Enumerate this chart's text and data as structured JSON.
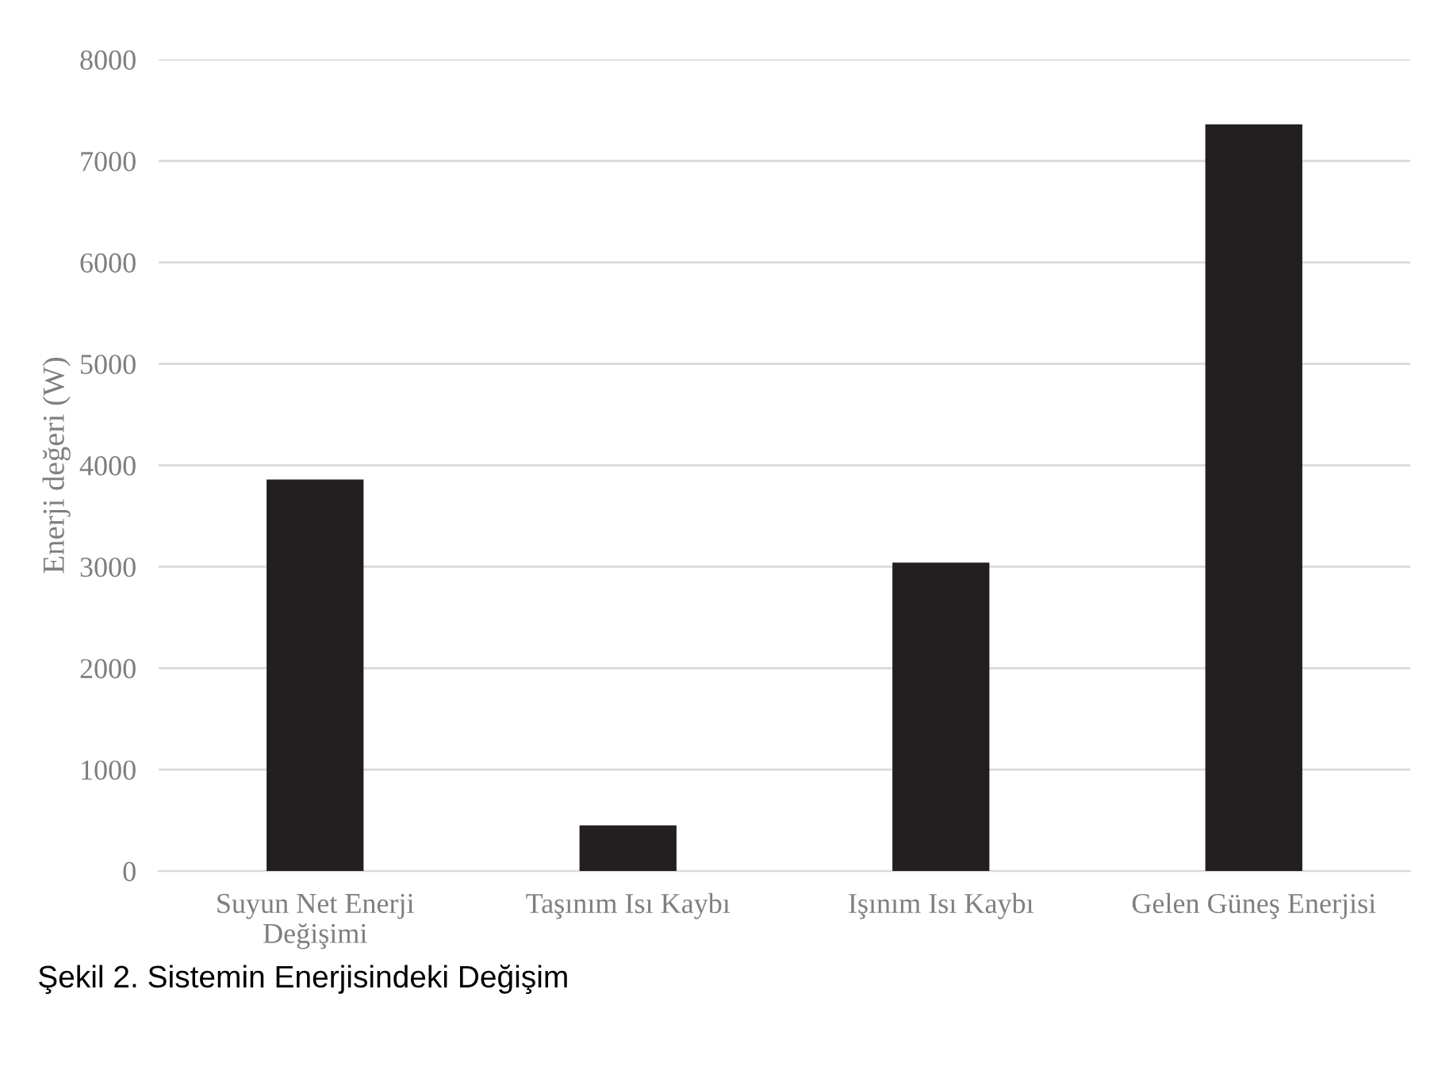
{
  "chart_data": {
    "type": "bar",
    "title": "Şekil 2. Sistemin Enerjisindeki Değişim",
    "ylabel": "Enerji değeri (W)",
    "categories": [
      "Suyun Net Enerji\nDeğişimi",
      "Taşınım Isı Kaybı",
      "Işınım Isı Kaybı",
      "Gelen Güneş Enerjisi"
    ],
    "values": [
      3860,
      450,
      3040,
      7360
    ],
    "color": "#231f20",
    "ylim": [
      0,
      8000
    ],
    "yticks": [
      0,
      1000,
      2000,
      3000,
      4000,
      5000,
      6000,
      7000,
      8000
    ],
    "grid": "y",
    "legend": false
  }
}
